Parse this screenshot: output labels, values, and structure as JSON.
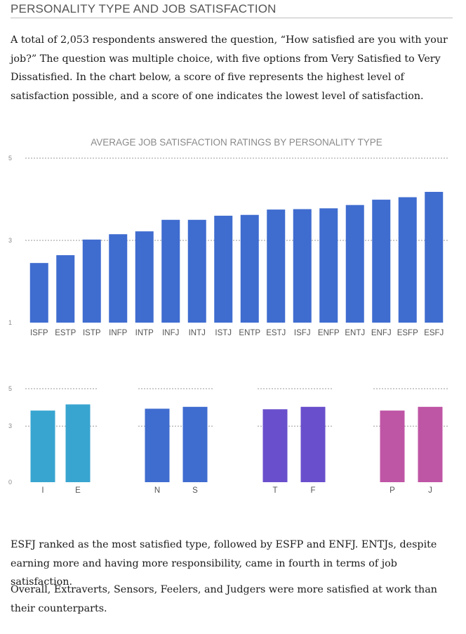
{
  "section_title": "PERSONALITY TYPE AND JOB SATISFACTION",
  "intro_paragraph": "A total of 2,053 respondents answered the question, “How satisfied are you with your job?” The question was multiple choice, with five options from Very Satisfied to Very Dissatisfied. In the chart below, a score of five represents the highest level of satisfaction possible, and a score of one indicates the lowest level of satisfaction.",
  "chart_data": [
    {
      "type": "bar",
      "title": "AVERAGE JOB SATISFACTION RATINGS BY PERSONALITY TYPE",
      "categories": [
        "ISFP",
        "ESTP",
        "ISTP",
        "INFP",
        "INTP",
        "INFJ",
        "INTJ",
        "ISTJ",
        "ENTP",
        "ESTJ",
        "ISFJ",
        "ENFP",
        "ENTJ",
        "ENFJ",
        "ESFP",
        "ESFJ"
      ],
      "values": [
        2.45,
        2.64,
        3.02,
        3.15,
        3.22,
        3.5,
        3.5,
        3.6,
        3.62,
        3.75,
        3.76,
        3.78,
        3.86,
        3.99,
        4.05,
        4.18
      ],
      "ylim": [
        1,
        5
      ],
      "yticks": [
        1,
        3,
        5
      ],
      "color": "#3f6ccf",
      "grid": "dashed"
    },
    {
      "type": "bar",
      "title": "",
      "categories": [
        "I",
        "E"
      ],
      "values": [
        3.83,
        4.16
      ],
      "ylim": [
        0,
        5
      ],
      "yticks": [
        0,
        3,
        5
      ],
      "color": "#38a5d0",
      "grid": "dashed"
    },
    {
      "type": "bar",
      "title": "",
      "categories": [
        "N",
        "S"
      ],
      "values": [
        3.93,
        4.03
      ],
      "ylim": [
        0,
        5
      ],
      "color": "#3f6ccf",
      "grid": "dashed"
    },
    {
      "type": "bar",
      "title": "",
      "categories": [
        "T",
        "F"
      ],
      "values": [
        3.9,
        4.03
      ],
      "ylim": [
        0,
        5
      ],
      "color": "#6a4fcc",
      "grid": "dashed"
    },
    {
      "type": "bar",
      "title": "",
      "categories": [
        "P",
        "J"
      ],
      "values": [
        3.83,
        4.03
      ],
      "ylim": [
        0,
        5
      ],
      "color": "#bf55a5",
      "grid": "dashed"
    }
  ],
  "conclusion_paragraph_1": "ESFJ ranked as the most satisfied type, followed by ESFP and ENFJ. ENTJs, despite earning more and having more responsibility, came in fourth in terms of job satisfaction.",
  "conclusion_paragraph_2": "Overall, Extraverts, Sensors, Feelers, and Judgers were more satisfied at work than their counterparts."
}
